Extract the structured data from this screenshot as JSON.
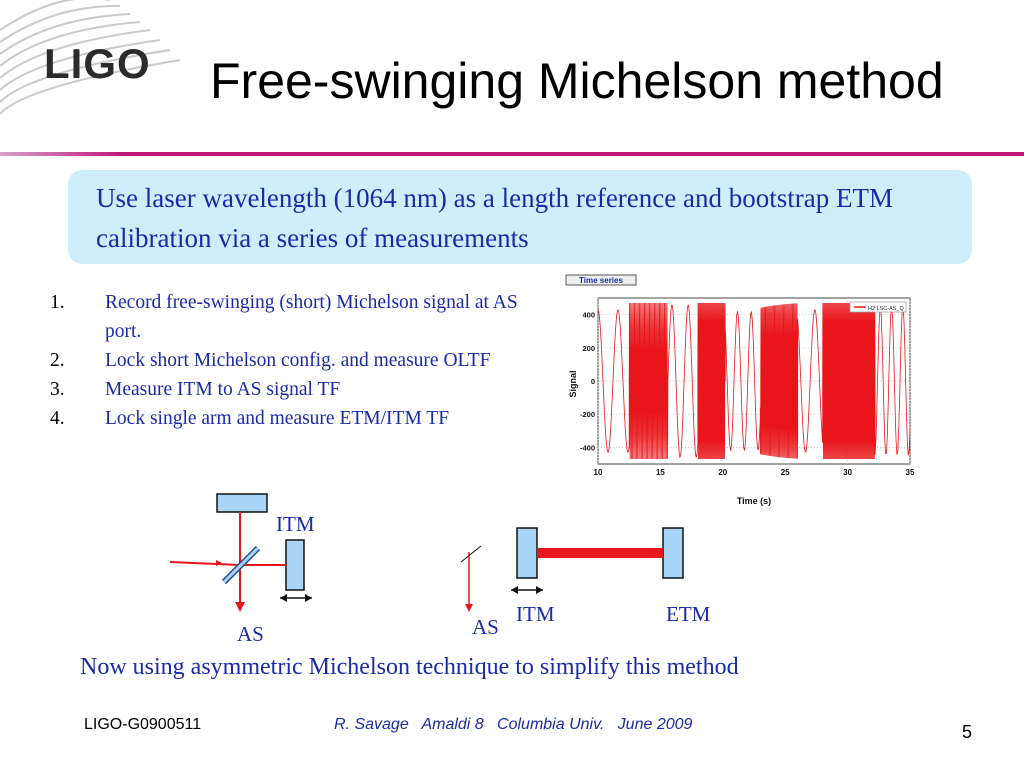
{
  "header": {
    "logo_text": "LIGO",
    "title": "Free-swinging Michelson method"
  },
  "callout": {
    "text": "Use laser wavelength (1064 nm) as a length reference and bootstrap ETM calibration via a series of measurements"
  },
  "steps": [
    {
      "num": "1.",
      "text": "Record free-swinging (short) Michelson signal at AS port."
    },
    {
      "num": "2.",
      "text": "Lock short Michelson  config. and measure OLTF"
    },
    {
      "num": "3.",
      "text": "Measure ITM to AS signal TF"
    },
    {
      "num": "4.",
      "text": "Lock single arm and measure ETM/ITM TF"
    }
  ],
  "chart_data": {
    "type": "line",
    "title": "Time series",
    "xlabel": "Time (s)",
    "ylabel": "Signal",
    "xlim": [
      10,
      35
    ],
    "ylim": [
      -500,
      500
    ],
    "x_ticks": [
      10,
      15,
      20,
      25,
      30,
      35
    ],
    "y_ticks": [
      400,
      200,
      0,
      -200,
      -400
    ],
    "grid": true,
    "legend_position": "top-right",
    "series": [
      {
        "name": "H2:LSC-AS_Q",
        "color": "#e8161b",
        "description_segments": [
          {
            "t_start": 10.0,
            "t_end": 12.5,
            "amplitude": 430,
            "period_s": 1.6
          },
          {
            "t_start": 12.5,
            "t_end": 15.6,
            "amplitude": 470,
            "period_s": 0.1
          },
          {
            "t_start": 15.6,
            "t_end": 18.0,
            "amplitude": 460,
            "period_s": 1.3
          },
          {
            "t_start": 18.0,
            "t_end": 20.2,
            "amplitude": 470,
            "period_s": 0.08
          },
          {
            "t_start": 20.2,
            "t_end": 23.0,
            "amplitude": 420,
            "period_s": 1.1
          },
          {
            "t_start": 23.0,
            "t_end": 26.0,
            "amplitude": 470,
            "period_s": 0.09
          },
          {
            "t_start": 26.0,
            "t_end": 28.0,
            "amplitude": 430,
            "period_s": 1.5
          },
          {
            "t_start": 28.0,
            "t_end": 32.2,
            "amplitude": 470,
            "period_s": 0.08
          },
          {
            "t_start": 32.2,
            "t_end": 35.0,
            "amplitude": 450,
            "period_s": 0.9
          }
        ]
      }
    ]
  },
  "diagram_left": {
    "itm_label": "ITM",
    "as_label": "AS"
  },
  "diagram_right": {
    "itm_label": "ITM",
    "etm_label": "ETM",
    "as_label": "AS"
  },
  "note": "Now using asymmetric Michelson technique to simplify this method",
  "footer": {
    "doc_id": "LIGO-G0900511",
    "credit": "R. Savage   Amaldi 8   Columbia Univ.   June 2009",
    "page_number": "5"
  },
  "colors": {
    "accent_blue": "#1a2aa8",
    "rule_magenta": "#c0187a",
    "callout_bg": "#cfeefc",
    "mirror_fill": "#a8d4f5",
    "beam_red": "#e8161b"
  }
}
